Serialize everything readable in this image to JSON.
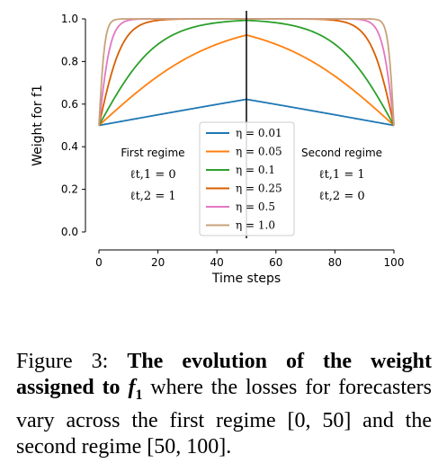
{
  "chart_data": {
    "type": "line",
    "title": "",
    "xlabel": "Time steps",
    "ylabel": "Weight for f1",
    "xlim": [
      0,
      100
    ],
    "ylim": [
      0,
      1.0
    ],
    "xticks": [
      "0",
      "20",
      "40",
      "60",
      "80",
      "100"
    ],
    "yticks": [
      "0.0",
      "0.2",
      "0.4",
      "0.6",
      "0.8",
      "1.0"
    ],
    "grid": false,
    "legend_placement": "lower-center",
    "vertical_line_x": 50,
    "annotations": {
      "first_regime": {
        "title": "First regime",
        "loss1": "ℓt,1 = 0",
        "loss2": "ℓt,2 = 1"
      },
      "second_regime": {
        "title": "Second regime",
        "loss1": "ℓt,1 = 1",
        "loss2": "ℓt,2 = 0"
      }
    },
    "series": [
      {
        "name": "η = 0.01",
        "eta": 0.01,
        "color": "#1f77b4"
      },
      {
        "name": "η = 0.05",
        "eta": 0.05,
        "color": "#ff7f0e"
      },
      {
        "name": "η = 0.1",
        "eta": 0.1,
        "color": "#2ca02c"
      },
      {
        "name": "η = 0.25",
        "eta": 0.25,
        "color": "#d95f02"
      },
      {
        "name": "η = 0.5",
        "eta": 0.5,
        "color": "#e377c2"
      },
      {
        "name": "η = 1.0",
        "eta": 1.0,
        "color": "#c8a27a"
      }
    ]
  },
  "caption": {
    "prefix": "Figure 3: ",
    "bold": "The evolution of the weight assigned to ",
    "math": "f",
    "math_sub": "1",
    "rest": " where the losses for forecasters vary across the first regime [0, 50] and the second regime [50, 100]."
  }
}
